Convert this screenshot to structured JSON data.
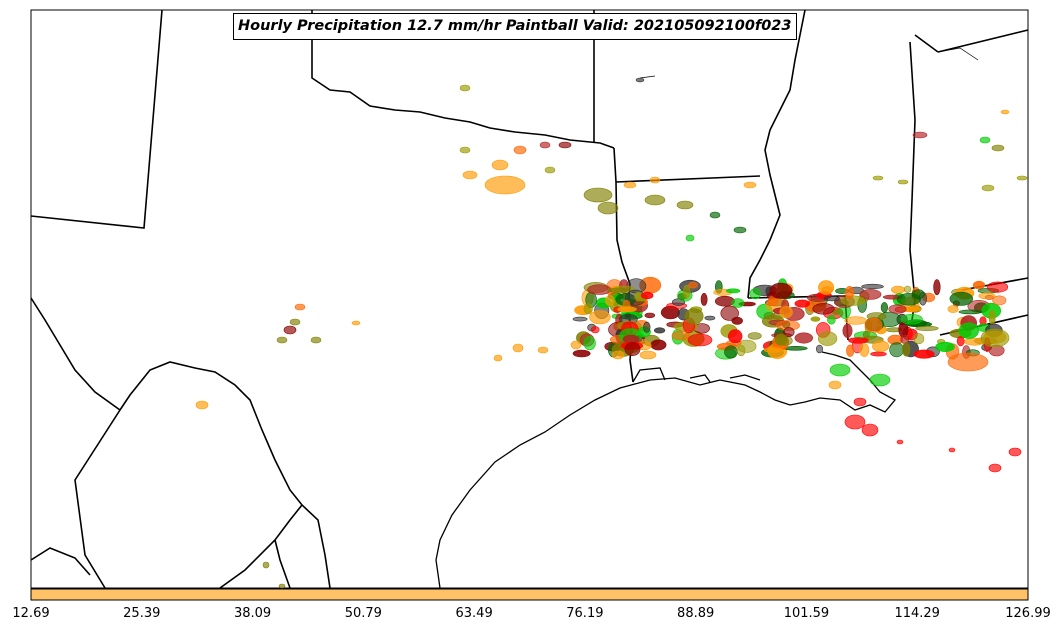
{
  "title": "Hourly Precipitation 12.7 mm/hr Paintball Valid: 202105092100f023",
  "colorbar": {
    "color": "#ffc266",
    "ticks": [
      "12.69",
      "25.39",
      "38.09",
      "50.79",
      "63.49",
      "76.19",
      "88.89",
      "101.59",
      "114.29",
      "126.99"
    ]
  },
  "member_colors": [
    "#ff9900",
    "#ff0000",
    "#8b0000",
    "#808000",
    "#006400",
    "#00cc00",
    "#333333",
    "#b22222",
    "#ff6600",
    "#999900"
  ],
  "map_lines": [
    "state-borders",
    "country-border",
    "gulf-coastline",
    "rivers"
  ]
}
